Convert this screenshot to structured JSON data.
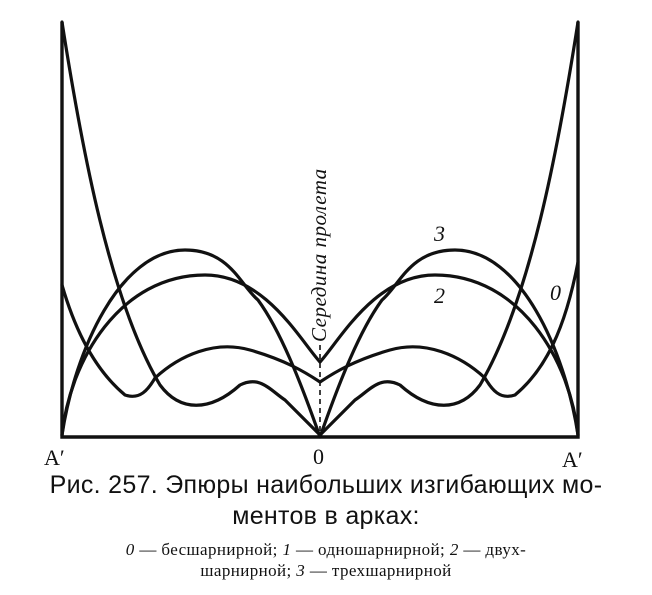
{
  "figure": {
    "midspan_label": "Середина пролета",
    "support_left": "A′",
    "support_right": "A′",
    "center_label": "0",
    "curve_labels": {
      "three": "3",
      "two": "2",
      "zero": "0"
    }
  },
  "caption": {
    "title_line1": "Рис. 257. Эпюры наибольших изгибающих мо-",
    "title_line2": "ментов в арках:",
    "legend_line1": {
      "k0": "0",
      "t0": " — бесшарнирной; ",
      "k1": "1",
      "t1": " — одношарнирной; ",
      "k2": "2",
      "t2": " — двух-"
    },
    "legend_line2": {
      "t2b": "шарнирной; ",
      "k3": "3",
      "t3": " — трехшарнирной"
    }
  }
}
